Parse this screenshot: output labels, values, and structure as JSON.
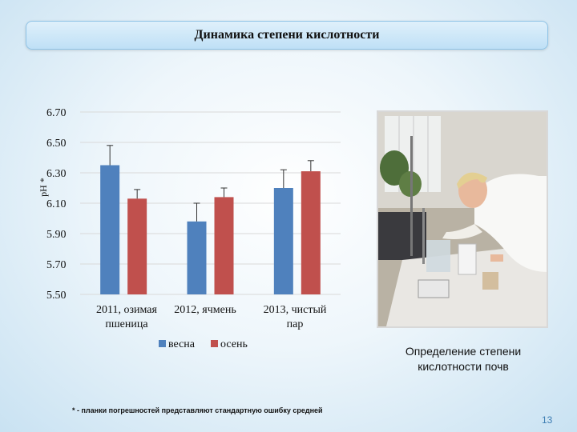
{
  "slide": {
    "title": "Динамика степени кислотности",
    "photo_caption": "Определение степени кислотности почв",
    "footnote": "* - планки погрешностей представляют стандартную ошибку средней",
    "page_number": "13"
  },
  "chart_data": {
    "type": "bar",
    "title": "",
    "xlabel": "",
    "ylabel": "pH *",
    "categories": [
      [
        "2011, озимая",
        "пшеница"
      ],
      [
        "2012, ячмень"
      ],
      [
        "2013, чистый",
        "пар"
      ]
    ],
    "series": [
      {
        "name": "весна",
        "color": "#4f81bd",
        "values": [
          6.35,
          5.98,
          6.2
        ],
        "errors": [
          0.13,
          0.12,
          0.12
        ]
      },
      {
        "name": "осень",
        "color": "#c0504d",
        "values": [
          6.13,
          6.14,
          6.31
        ],
        "errors": [
          0.06,
          0.06,
          0.07
        ]
      }
    ],
    "ylim": [
      5.5,
      6.7
    ],
    "yticks": [
      "6.70",
      "6.50",
      "6.30",
      "6.10",
      "5.90",
      "5.70",
      "5.50"
    ],
    "grid": true,
    "legend": "bottom"
  }
}
